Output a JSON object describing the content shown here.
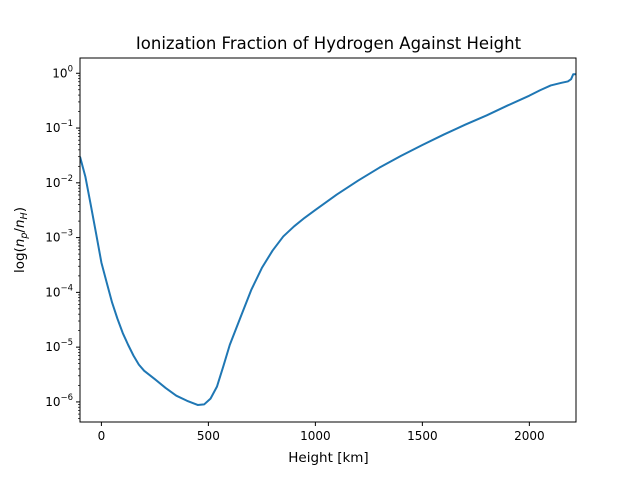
{
  "chart_data": {
    "type": "line",
    "title": "Ionization Fraction of Hydrogen Against Height",
    "xlabel": "Height [km]",
    "ylabel": "log(n_p/n_H)",
    "ylabel_parts": {
      "prefix": "log(",
      "n1": "n",
      "sub1": "p",
      "slash": "/",
      "n2": "n",
      "sub2": "H",
      "suffix": ")"
    },
    "xlim": [
      -100,
      2218
    ],
    "ylim": [
      4.3e-07,
      1.9
    ],
    "yscale": "log",
    "grid": false,
    "x_ticks": [
      {
        "value": 0,
        "label": "0"
      },
      {
        "value": 500,
        "label": "500"
      },
      {
        "value": 1000,
        "label": "1000"
      },
      {
        "value": 1500,
        "label": "1500"
      },
      {
        "value": 2000,
        "label": "2000"
      }
    ],
    "y_ticks": [
      {
        "value": 1e-06,
        "base": "10",
        "exp": "−6"
      },
      {
        "value": 1e-05,
        "base": "10",
        "exp": "−5"
      },
      {
        "value": 0.0001,
        "base": "10",
        "exp": "−4"
      },
      {
        "value": 0.001,
        "base": "10",
        "exp": "−3"
      },
      {
        "value": 0.01,
        "base": "10",
        "exp": "−2"
      },
      {
        "value": 0.1,
        "base": "10",
        "exp": "−1"
      },
      {
        "value": 1,
        "base": "10",
        "exp": "0"
      }
    ],
    "series": [
      {
        "color": "#1f77b4",
        "x": [
          -100,
          -75,
          -50,
          -25,
          0,
          25,
          50,
          75,
          100,
          125,
          150,
          175,
          200,
          250,
          300,
          350,
          400,
          450,
          480,
          510,
          540,
          570,
          600,
          650,
          700,
          750,
          800,
          850,
          900,
          950,
          1000,
          1100,
          1200,
          1300,
          1400,
          1500,
          1600,
          1700,
          1800,
          1900,
          2000,
          2050,
          2100,
          2150,
          2180,
          2195,
          2205,
          2218
        ],
        "y": [
          0.03,
          0.013,
          0.004,
          0.0012,
          0.00035,
          0.00015,
          6.5e-05,
          3.3e-05,
          1.8e-05,
          1.1e-05,
          7e-06,
          4.8e-06,
          3.7e-06,
          2.6e-06,
          1.8e-06,
          1.3e-06,
          1.05e-06,
          8.8e-07,
          9e-07,
          1.15e-06,
          1.9e-06,
          4.5e-06,
          1.1e-05,
          3.5e-05,
          0.00011,
          0.00028,
          0.00058,
          0.00105,
          0.0016,
          0.0023,
          0.0032,
          0.0061,
          0.011,
          0.019,
          0.031,
          0.049,
          0.076,
          0.115,
          0.17,
          0.26,
          0.39,
          0.49,
          0.6,
          0.67,
          0.71,
          0.78,
          0.96,
          0.96
        ]
      }
    ]
  }
}
